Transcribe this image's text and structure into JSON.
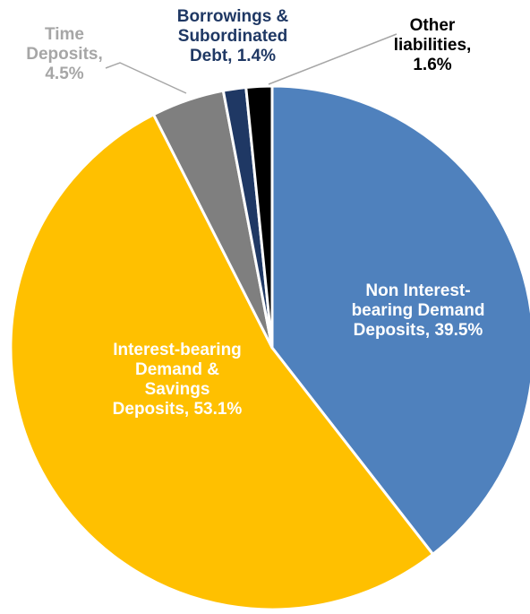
{
  "chart_data": {
    "type": "pie",
    "title": "",
    "start": "top, clockwise",
    "slices": [
      {
        "name": "Non Interest-bearing Demand Deposits",
        "value": 39.5,
        "label_lines": [
          "Non Interest-",
          "bearing Demand",
          "Deposits, 39.5%"
        ],
        "color": "#4F81BD",
        "label_color": "#FFFFFF"
      },
      {
        "name": "Interest-bearing Demand & Savings Deposits",
        "value": 53.1,
        "label_lines": [
          "Interest-bearing",
          "Demand &",
          "Savings",
          "Deposits, 53.1%"
        ],
        "color": "#FFC000",
        "label_color": "#FFFFFF"
      },
      {
        "name": "Time Deposits",
        "value": 4.5,
        "label_lines": [
          "Time",
          "Deposits,",
          "4.5%"
        ],
        "color": "#7F7F7F",
        "label_color": "#A6A6A6"
      },
      {
        "name": "Borrowings & Subordinated Debt",
        "value": 1.4,
        "label_lines": [
          "Borrowings &",
          "Subordinated",
          "Debt, 1.4%"
        ],
        "color": "#1F3864",
        "label_color": "#1F3864"
      },
      {
        "name": "Other liabilities",
        "value": 1.6,
        "label_lines": [
          "Other",
          "liabilities,",
          "1.6%"
        ],
        "color": "#000000",
        "label_color": "#000000"
      }
    ]
  }
}
